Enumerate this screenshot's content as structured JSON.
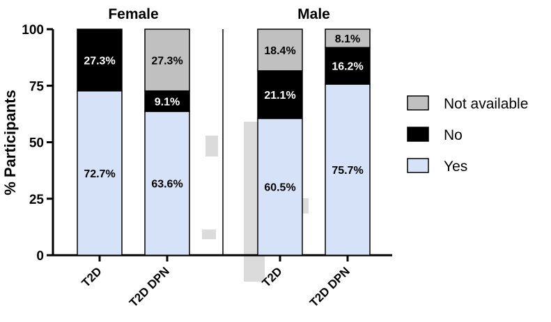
{
  "chart_data": {
    "type": "bar",
    "stacked": true,
    "ylabel": "% Participants",
    "ylim": [
      0,
      100
    ],
    "yticks": [
      0,
      25,
      50,
      75,
      100
    ],
    "grid": false,
    "legend_placement": "right",
    "panels": [
      {
        "title": "Female",
        "categories": [
          "T2D",
          "T2D DPN"
        ]
      },
      {
        "title": "Male",
        "categories": [
          "T2D",
          "T2D DPN"
        ]
      }
    ],
    "categories": [
      "T2D",
      "T2D DPN",
      "T2D",
      "T2D DPN"
    ],
    "series": [
      {
        "name": "Yes",
        "color": "#d6e2f8",
        "values": [
          72.7,
          63.6,
          60.5,
          75.7
        ],
        "labels": [
          "72.7%",
          "63.6%",
          "60.5%",
          "75.7%"
        ]
      },
      {
        "name": "No",
        "color": "#000000",
        "values": [
          27.3,
          9.1,
          21.1,
          16.2
        ],
        "labels": [
          "27.3%",
          "9.1%",
          "21.1%",
          "16.2%"
        ]
      },
      {
        "name": "Not available",
        "color": "#c0c0c0",
        "values": [
          0,
          27.3,
          18.4,
          8.1
        ],
        "labels": [
          "",
          "27.3%",
          "18.4%",
          "8.1%"
        ]
      }
    ],
    "legend_order": [
      "Not available",
      "No",
      "Yes"
    ]
  }
}
